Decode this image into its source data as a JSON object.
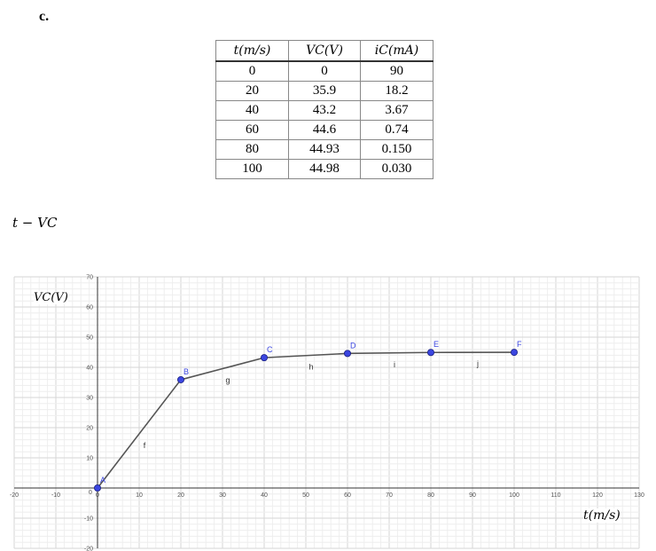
{
  "section_label": "c.",
  "table": {
    "headers": [
      "t(m/s)",
      "VC(V)",
      "iC(mA)"
    ],
    "rows": [
      [
        "0",
        "0",
        "90"
      ],
      [
        "20",
        "35.9",
        "18.2"
      ],
      [
        "40",
        "43.2",
        "3.67"
      ],
      [
        "60",
        "44.6",
        "0.74"
      ],
      [
        "80",
        "44.93",
        "0.150"
      ],
      [
        "100",
        "44.98",
        "0.030"
      ]
    ]
  },
  "plot_title": "t − VC",
  "chart_data": {
    "type": "line",
    "xlabel": "t(m/s)",
    "ylabel": "VC(V)",
    "xlim": [
      -20,
      130
    ],
    "ylim": [
      -20,
      70
    ],
    "grid": true,
    "x_ticks": [
      "-20",
      "-10",
      "0",
      "10",
      "20",
      "30",
      "40",
      "50",
      "60",
      "70",
      "80",
      "90",
      "100",
      "110",
      "120",
      "130"
    ],
    "y_ticks": [
      "-20",
      "-10",
      "10",
      "20",
      "30",
      "40",
      "50",
      "60",
      "70"
    ],
    "points": [
      {
        "name": "A",
        "x": 0,
        "y": 0
      },
      {
        "name": "B",
        "x": 20,
        "y": 35.9
      },
      {
        "name": "C",
        "x": 40,
        "y": 43.2
      },
      {
        "name": "D",
        "x": 60,
        "y": 44.6
      },
      {
        "name": "E",
        "x": 80,
        "y": 44.93
      },
      {
        "name": "F",
        "x": 100,
        "y": 44.98
      }
    ],
    "segment_labels": [
      "f",
      "g",
      "h",
      "i",
      "j"
    ],
    "point_color": "#3b46e0",
    "line_color": "#555555"
  }
}
